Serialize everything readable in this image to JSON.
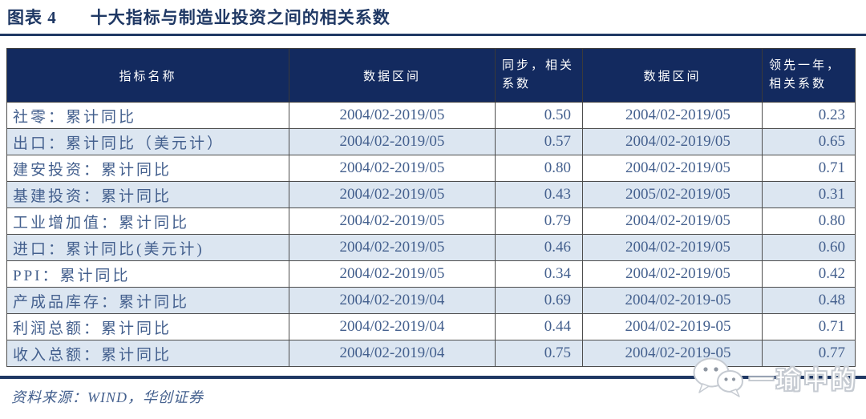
{
  "title": {
    "label": "图表 4",
    "text": "十大指标与制造业投资之间的相关系数"
  },
  "table": {
    "headers": {
      "indicator": "指标名称",
      "range_sync": "数据区间",
      "sync_coef": "同步，相关\n系数",
      "range_lead": "数据区间",
      "lead_coef": "领先一年，\n相关系数"
    },
    "rows": [
      {
        "indicator": "社零：累计同比",
        "range_sync": "2004/02-2019/05",
        "sync_coef": "0.50",
        "range_lead": "2004/02-2019/05",
        "lead_coef": "0.23"
      },
      {
        "indicator": "出口：累计同比（美元计）",
        "range_sync": "2004/02-2019/05",
        "sync_coef": "0.57",
        "range_lead": "2004/02-2019/05",
        "lead_coef": "0.65"
      },
      {
        "indicator": "建安投资：累计同比",
        "range_sync": "2004/02-2019/05",
        "sync_coef": "0.80",
        "range_lead": "2004/02-2019/05",
        "lead_coef": "0.71"
      },
      {
        "indicator": "基建投资：累计同比",
        "range_sync": "2004/02-2019/05",
        "sync_coef": "0.43",
        "range_lead": "2005/02-2019/05",
        "lead_coef": "0.31"
      },
      {
        "indicator": "工业增加值：累计同比",
        "range_sync": "2004/02-2019/05",
        "sync_coef": "0.79",
        "range_lead": "2004/02-2019/05",
        "lead_coef": "0.80"
      },
      {
        "indicator": "进口：累计同比(美元计)",
        "range_sync": "2004/02-2019/05",
        "sync_coef": "0.46",
        "range_lead": "2004/02-2019/05",
        "lead_coef": "0.60"
      },
      {
        "indicator": "PPI：累计同比",
        "range_sync": "2004/02-2019/05",
        "sync_coef": "0.34",
        "range_lead": "2004/02-2019/05",
        "lead_coef": "0.42"
      },
      {
        "indicator": "产成品库存：累计同比",
        "range_sync": "2004/02-2019/04",
        "sync_coef": "0.69",
        "range_lead": "2004/02-2019-05",
        "lead_coef": "0.48"
      },
      {
        "indicator": "利润总额：累计同比",
        "range_sync": "2004/02-2019/04",
        "sync_coef": "0.44",
        "range_lead": "2004/02-2019-05",
        "lead_coef": "0.71"
      },
      {
        "indicator": "收入总额：累计同比",
        "range_sync": "2004/02-2019/04",
        "sync_coef": "0.75",
        "range_lead": "2004/02-2019-05",
        "lead_coef": "0.77"
      }
    ]
  },
  "footer": {
    "source": "资料来源：WIND，华创证券"
  },
  "watermark": {
    "icon": "wechat-icon",
    "text": "一瑜中的"
  },
  "colors": {
    "accent_navy": "#1f3864",
    "header_bg": "#132a5f",
    "row_alt_bg": "#dce6f1",
    "body_text": "#44608e",
    "border": "#4d4d4d"
  }
}
